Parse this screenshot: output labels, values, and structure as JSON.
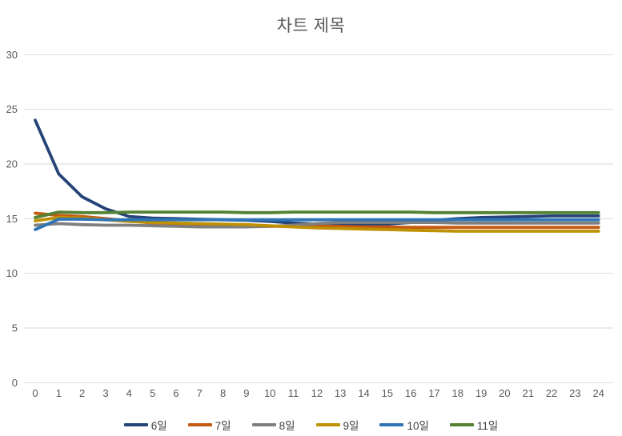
{
  "chart_data": {
    "type": "line",
    "title": "차트 제목",
    "x": [
      0,
      1,
      2,
      3,
      4,
      5,
      6,
      7,
      8,
      9,
      10,
      11,
      12,
      13,
      14,
      15,
      16,
      17,
      18,
      19,
      20,
      21,
      22,
      23,
      24
    ],
    "series": [
      {
        "name": "6일",
        "color": "#264478",
        "values": [
          24,
          19.1,
          17,
          15.9,
          15.2,
          15.05,
          15,
          14.95,
          14.9,
          14.85,
          14.75,
          14.6,
          14.5,
          14.45,
          14.45,
          14.5,
          14.65,
          14.85,
          15,
          15.1,
          15.15,
          15.2,
          15.25,
          15.25,
          15.25
        ]
      },
      {
        "name": "7일",
        "color": "#C55A11",
        "values": [
          15.5,
          15.3,
          15.2,
          15.0,
          14.8,
          14.6,
          14.5,
          14.4,
          14.35,
          14.3,
          14.3,
          14.3,
          14.3,
          14.3,
          14.25,
          14.25,
          14.2,
          14.2,
          14.2,
          14.2,
          14.2,
          14.2,
          14.2,
          14.2,
          14.2
        ]
      },
      {
        "name": "8일",
        "color": "#7F7F7F",
        "values": [
          14.4,
          14.55,
          14.45,
          14.4,
          14.4,
          14.35,
          14.3,
          14.25,
          14.25,
          14.25,
          14.3,
          14.4,
          14.55,
          14.65,
          14.65,
          14.65,
          14.65,
          14.65,
          14.6,
          14.6,
          14.6,
          14.6,
          14.6,
          14.6,
          14.6
        ]
      },
      {
        "name": "9일",
        "color": "#BF9000",
        "values": [
          14.8,
          15.1,
          15.05,
          14.9,
          14.75,
          14.65,
          14.6,
          14.55,
          14.5,
          14.45,
          14.35,
          14.25,
          14.15,
          14.1,
          14.05,
          14.0,
          13.95,
          13.9,
          13.85,
          13.85,
          13.85,
          13.85,
          13.85,
          13.85,
          13.85
        ]
      },
      {
        "name": "10일",
        "color": "#2E75B6",
        "values": [
          14.0,
          14.95,
          14.95,
          14.9,
          14.9,
          14.9,
          14.9,
          14.9,
          14.9,
          14.9,
          14.9,
          14.9,
          14.9,
          14.9,
          14.9,
          14.9,
          14.9,
          14.9,
          14.9,
          14.9,
          14.9,
          14.9,
          14.9,
          14.9,
          14.9
        ]
      },
      {
        "name": "11일",
        "color": "#548235",
        "values": [
          15.1,
          15.6,
          15.55,
          15.55,
          15.6,
          15.6,
          15.6,
          15.6,
          15.6,
          15.55,
          15.55,
          15.6,
          15.6,
          15.6,
          15.6,
          15.6,
          15.6,
          15.55,
          15.55,
          15.55,
          15.55,
          15.55,
          15.55,
          15.55,
          15.55
        ]
      }
    ],
    "ylim": [
      0,
      30
    ],
    "yticks": [
      0,
      5,
      10,
      15,
      20,
      25,
      30
    ],
    "xlabel": "",
    "ylabel": "",
    "grid": "horizontal",
    "gridline_color": "#D9D9D9",
    "text_color": "#595959",
    "legend_position": "bottom"
  }
}
